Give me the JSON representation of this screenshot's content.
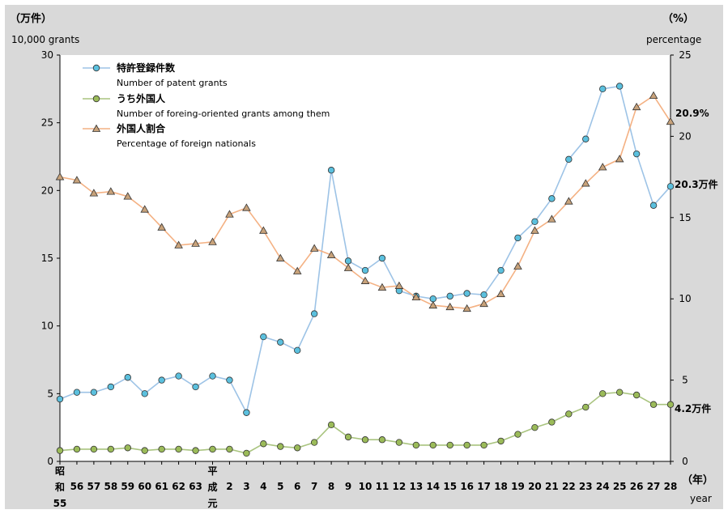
{
  "chart_data": {
    "type": "line",
    "title": "",
    "y_left": {
      "unit_label": "（万件）",
      "label": "10,000 grants",
      "ylim": [
        0,
        30
      ],
      "ticks": [
        "0",
        "5",
        "10",
        "15",
        "20",
        "25",
        "30"
      ]
    },
    "y_right": {
      "unit_label": "（%）",
      "label": "percentage",
      "ylim": [
        0,
        25
      ],
      "ticks": [
        "0",
        "5",
        "10",
        "15",
        "20",
        "25"
      ]
    },
    "x_unit_label": "（年）",
    "x_label": "year",
    "x_tick_labels": [
      "昭和55",
      "56",
      "57",
      "58",
      "59",
      "60",
      "61",
      "62",
      "63",
      "平成元",
      "2",
      "3",
      "4",
      "5",
      "6",
      "7",
      "8",
      "9",
      "10",
      "11",
      "12",
      "13",
      "14",
      "15",
      "16",
      "17",
      "18",
      "19",
      "20",
      "21",
      "22",
      "23",
      "24",
      "25",
      "26",
      "27",
      "28"
    ],
    "series": [
      {
        "name": "特許登録件数",
        "name_en": "Number of patent grants",
        "axis": "left",
        "color": "#9dc3e6",
        "marker": "circle",
        "marker_fill": "#5bc0de",
        "values": [
          4.6,
          5.1,
          5.1,
          5.5,
          6.2,
          5.0,
          6.0,
          6.3,
          5.5,
          6.3,
          6.0,
          3.6,
          9.2,
          8.8,
          8.2,
          10.9,
          21.5,
          14.8,
          14.1,
          15.0,
          12.6,
          12.2,
          12.0,
          12.2,
          12.4,
          12.3,
          14.1,
          16.5,
          17.7,
          19.4,
          22.3,
          23.8,
          27.5,
          27.7,
          22.7,
          18.9,
          20.3
        ]
      },
      {
        "name": "うち外国人",
        "name_en": "Number of foreing-oriented grants among them",
        "axis": "left",
        "color": "#a9c47f",
        "marker": "circle",
        "marker_fill": "#9bbb59",
        "values": [
          0.8,
          0.9,
          0.9,
          0.9,
          1.0,
          0.8,
          0.9,
          0.9,
          0.8,
          0.9,
          0.9,
          0.6,
          1.3,
          1.1,
          1.0,
          1.4,
          2.7,
          1.8,
          1.6,
          1.6,
          1.4,
          1.2,
          1.2,
          1.2,
          1.2,
          1.2,
          1.5,
          2.0,
          2.5,
          2.9,
          3.5,
          4.0,
          5.0,
          5.1,
          4.9,
          4.2,
          4.2
        ]
      },
      {
        "name": "外国人割合",
        "name_en": "Percentage of foreign nationals",
        "axis": "right",
        "color": "#f4b183",
        "marker": "triangle",
        "marker_fill": "#c8a27a",
        "values": [
          17.5,
          17.3,
          16.5,
          16.6,
          16.3,
          15.5,
          14.4,
          13.3,
          13.4,
          13.5,
          15.2,
          15.6,
          14.2,
          12.5,
          11.7,
          13.1,
          12.7,
          11.9,
          11.1,
          10.7,
          10.8,
          10.1,
          9.6,
          9.5,
          9.4,
          9.7,
          10.3,
          12.0,
          14.2,
          14.9,
          16.0,
          17.1,
          18.1,
          18.6,
          21.8,
          22.5,
          20.9
        ]
      }
    ],
    "annotations": {
      "last_percentage": "20.9%",
      "last_grants": "20.3万件",
      "last_foreign": "4.2万件"
    }
  }
}
